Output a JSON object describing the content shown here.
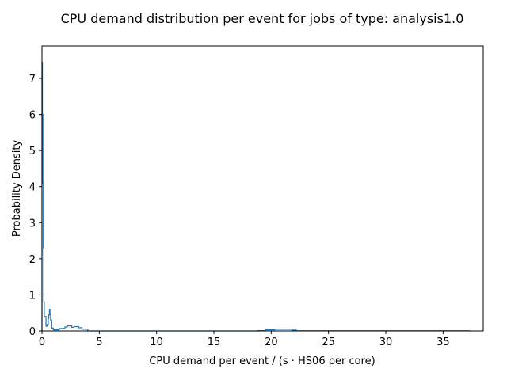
{
  "chart_data": {
    "type": "histogram",
    "title": "CPU demand distribution per event for jobs of type: analysis1.0",
    "xlabel": "CPU demand per event / (s · HS06 per core)",
    "ylabel": "Probability Density",
    "xlim": [
      0,
      38.5
    ],
    "ylim": [
      0,
      7.9
    ],
    "xticks": [
      0,
      5,
      10,
      15,
      20,
      25,
      30,
      35
    ],
    "yticks": [
      0,
      1,
      2,
      3,
      4,
      5,
      6,
      7
    ],
    "grid": false,
    "color": "#1f77b4",
    "histtype": "step",
    "bins": [
      [
        0.0,
        0.04,
        7.45
      ],
      [
        0.04,
        0.08,
        6.0
      ],
      [
        0.08,
        0.12,
        4.1
      ],
      [
        0.12,
        0.16,
        2.3
      ],
      [
        0.16,
        0.2,
        0.8
      ],
      [
        0.2,
        0.35,
        0.4
      ],
      [
        0.35,
        0.45,
        0.13
      ],
      [
        0.45,
        0.55,
        0.18
      ],
      [
        0.55,
        0.6,
        0.35
      ],
      [
        0.6,
        0.65,
        0.45
      ],
      [
        0.65,
        0.7,
        0.6
      ],
      [
        0.7,
        0.75,
        0.45
      ],
      [
        0.75,
        0.85,
        0.3
      ],
      [
        0.85,
        1.0,
        0.08
      ],
      [
        1.0,
        1.5,
        0.03
      ],
      [
        1.5,
        2.0,
        0.07
      ],
      [
        2.0,
        2.2,
        0.11
      ],
      [
        2.2,
        2.6,
        0.14
      ],
      [
        2.6,
        2.8,
        0.1
      ],
      [
        2.8,
        3.2,
        0.12
      ],
      [
        3.2,
        3.5,
        0.09
      ],
      [
        3.5,
        4.0,
        0.05
      ],
      [
        4.0,
        18.8,
        0.0
      ],
      [
        18.8,
        19.5,
        0.01
      ],
      [
        19.5,
        20.3,
        0.03
      ],
      [
        20.3,
        21.8,
        0.045
      ],
      [
        21.8,
        22.2,
        0.025
      ],
      [
        22.2,
        37.3,
        0.005
      ]
    ]
  }
}
